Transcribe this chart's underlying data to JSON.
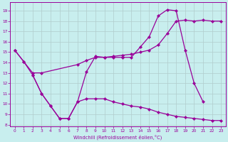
{
  "xlabel": "Windchill (Refroidissement éolien,°C)",
  "bg_color": "#c8eeee",
  "line_color": "#990099",
  "grid_color": "#b0cccc",
  "xlim": [
    -0.5,
    23.5
  ],
  "ylim": [
    7.8,
    19.8
  ],
  "xticks": [
    0,
    1,
    2,
    3,
    4,
    5,
    6,
    7,
    8,
    9,
    10,
    11,
    12,
    13,
    14,
    15,
    16,
    17,
    18,
    19,
    20,
    21,
    22,
    23
  ],
  "yticks": [
    8,
    9,
    10,
    11,
    12,
    13,
    14,
    15,
    16,
    17,
    18,
    19
  ],
  "line1_x": [
    0,
    1,
    2,
    3,
    4,
    5,
    6,
    7,
    8,
    9,
    10,
    11,
    12,
    13,
    14,
    15,
    16,
    17,
    18,
    19,
    20,
    21
  ],
  "line1_y": [
    15.2,
    14.1,
    12.8,
    11.0,
    9.8,
    8.6,
    8.6,
    10.2,
    13.1,
    14.6,
    14.5,
    14.5,
    14.5,
    14.5,
    15.5,
    16.5,
    18.5,
    19.1,
    19.0,
    15.2,
    12.0,
    10.2
  ],
  "line2_x": [
    0,
    1,
    2,
    3,
    7,
    8,
    9,
    10,
    11,
    12,
    13,
    14,
    15,
    16,
    17,
    18,
    19,
    20,
    21,
    22,
    23
  ],
  "line2_y": [
    15.2,
    14.1,
    13.0,
    13.0,
    13.8,
    14.2,
    14.5,
    14.5,
    14.6,
    14.7,
    14.8,
    15.0,
    15.2,
    15.7,
    16.8,
    18.0,
    18.1,
    18.0,
    18.1,
    18.0,
    18.0
  ],
  "line3_x": [
    2,
    3,
    4,
    5,
    6,
    7,
    8,
    9,
    10,
    11,
    12,
    13,
    14,
    15,
    16,
    17,
    18,
    19,
    20,
    21,
    22,
    23
  ],
  "line3_y": [
    12.8,
    11.0,
    9.8,
    8.6,
    8.6,
    10.2,
    10.5,
    10.5,
    10.5,
    10.2,
    10.0,
    9.8,
    9.7,
    9.5,
    9.2,
    9.0,
    8.8,
    8.7,
    8.6,
    8.5,
    8.4,
    8.4
  ]
}
